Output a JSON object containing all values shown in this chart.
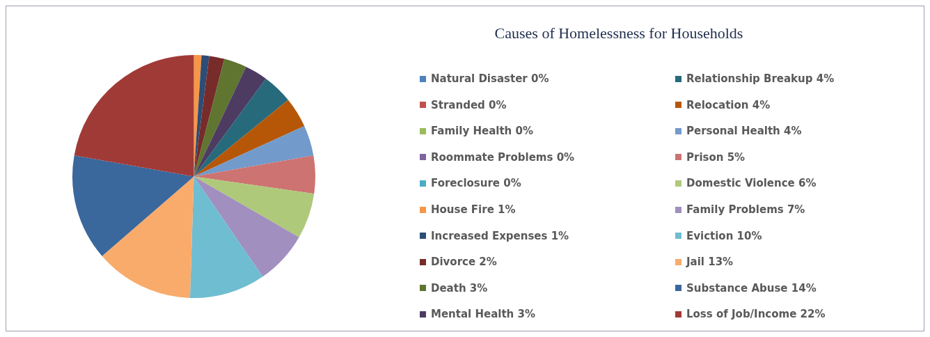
{
  "chart_data": {
    "type": "pie",
    "title": "Causes of Homelessness for Households",
    "legend": "right",
    "categories": [
      "Natural Disaster 0%",
      "Stranded 0%",
      "Family Health 0%",
      "Roommate Problems 0%",
      "Foreclosure 0%",
      "House Fire 1%",
      "Increased Expenses 1%",
      "Divorce 2%",
      "Death 3%",
      "Mental Health 3%",
      "Relationship Breakup 4%",
      "Relocation 4%",
      "Personal Health 4%",
      "Prison 5%",
      "Domestic Violence 6%",
      "Family Problems 7%",
      "Eviction 10%",
      "Jail 13%",
      "Substance Abuse 14%",
      "Loss of Job/Income 22%"
    ],
    "values": [
      0,
      0,
      0,
      0,
      0,
      1,
      1,
      2,
      3,
      3,
      4,
      4,
      4,
      5,
      6,
      7,
      10,
      13,
      14,
      22
    ],
    "colors": [
      "#4f81bd",
      "#c0504d",
      "#9bbb59",
      "#8064a2",
      "#4bacc6",
      "#f79646",
      "#2c4d75",
      "#772c2a",
      "#5f7530",
      "#4d3b62",
      "#276a7c",
      "#b65708",
      "#729aca",
      "#cd7371",
      "#afc97a",
      "#a18fbf",
      "#6fbdd1",
      "#f9ab6b",
      "#3a679c",
      "#a03a37"
    ]
  }
}
